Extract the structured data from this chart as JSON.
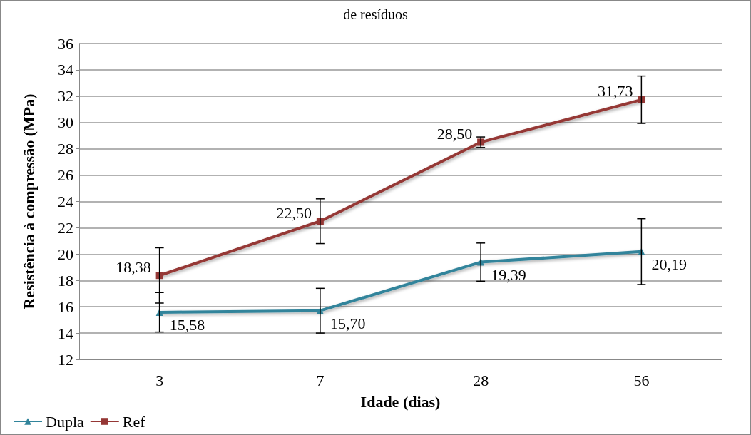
{
  "chart_data": {
    "type": "line",
    "title": "de resíduos",
    "xlabel": "Idade (dias)",
    "ylabel": "Resistência à compressão (MPa)",
    "categories": [
      "3",
      "7",
      "28",
      "56"
    ],
    "series": [
      {
        "name": "Dupla",
        "color": "#31849b",
        "marker": "triangle",
        "values": [
          15.58,
          15.7,
          19.39,
          20.19
        ],
        "value_labels": [
          "15,58",
          "15,70",
          "19,39",
          "20,19"
        ],
        "errors": [
          1.5,
          1.7,
          1.45,
          2.5
        ]
      },
      {
        "name": "Ref",
        "color": "#953735",
        "marker": "square",
        "values": [
          18.38,
          22.5,
          28.5,
          31.73
        ],
        "value_labels": [
          "18,38",
          "22,50",
          "28,50",
          "31,73"
        ],
        "errors": [
          2.1,
          1.7,
          0.4,
          1.8
        ]
      }
    ],
    "ylim": [
      12,
      36
    ],
    "yticks": [
      12,
      14,
      16,
      18,
      20,
      22,
      24,
      26,
      28,
      30,
      32,
      34,
      36
    ],
    "grid": "y",
    "legend": "bottom left",
    "line_style": "solid"
  }
}
